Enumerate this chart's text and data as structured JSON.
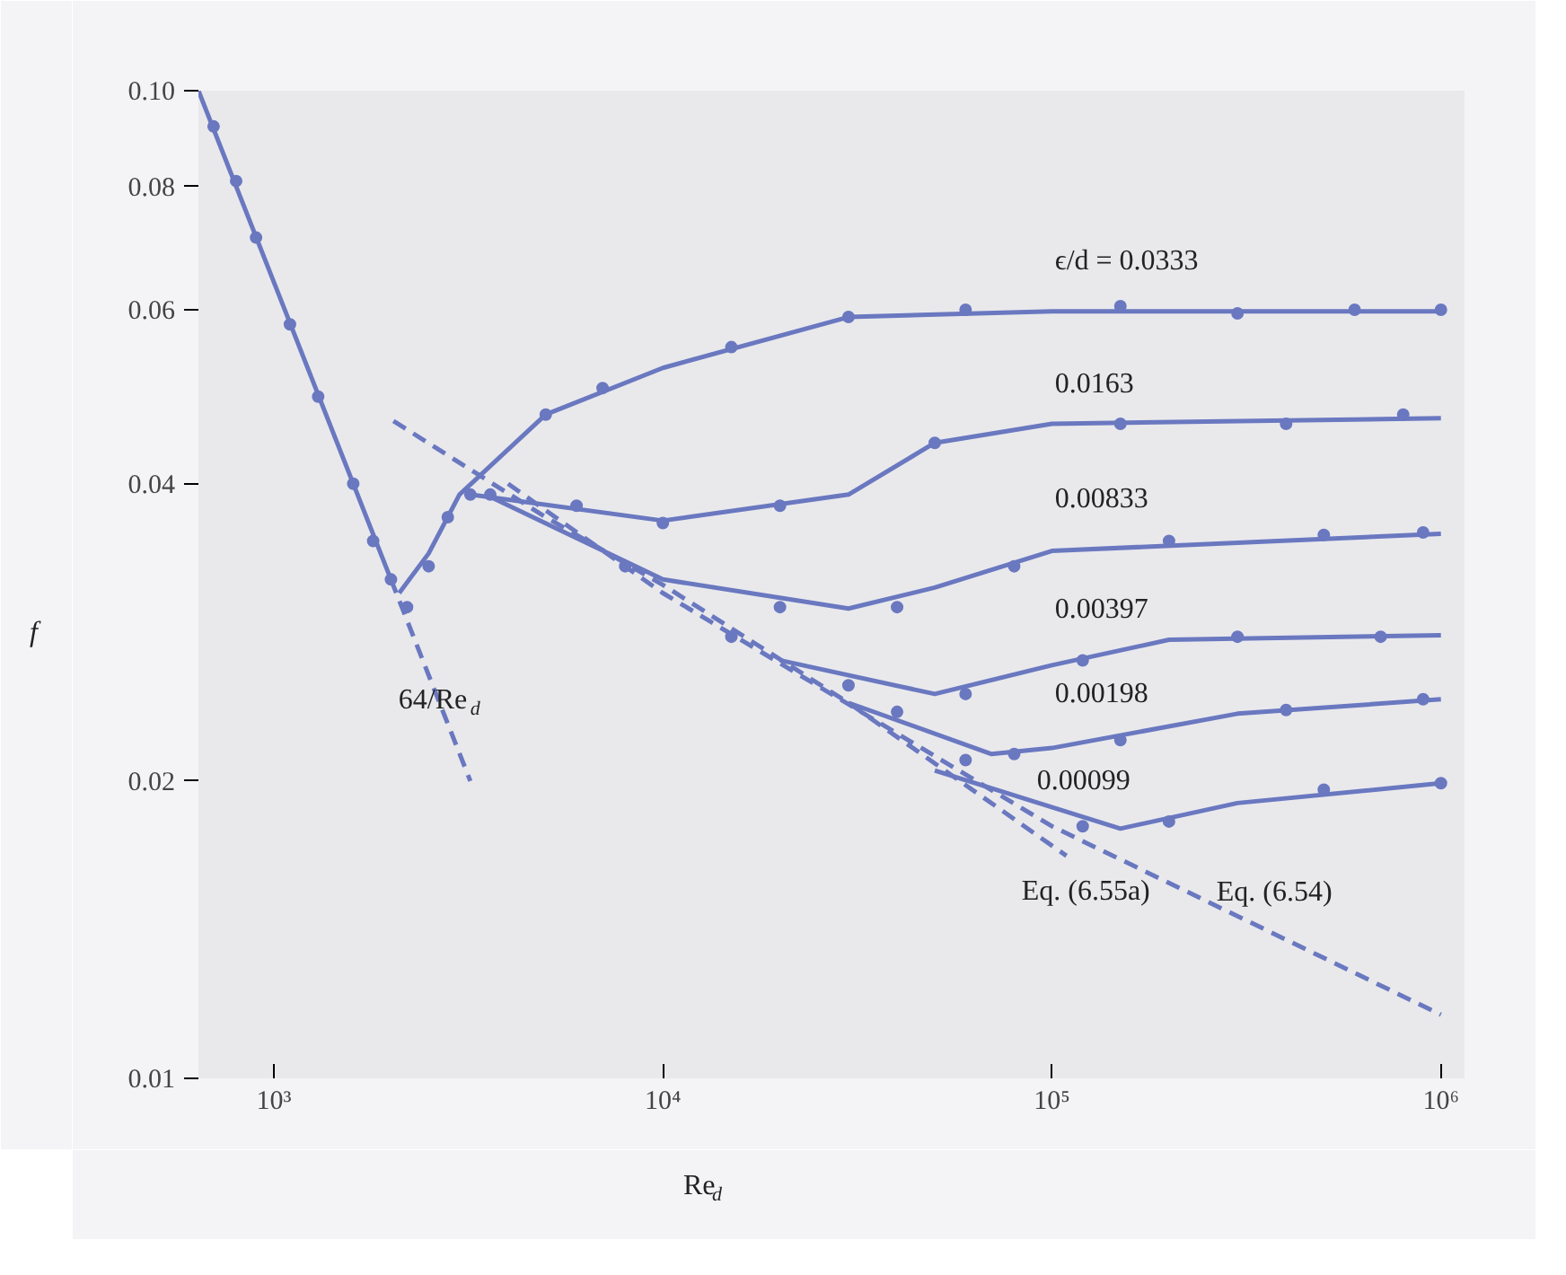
{
  "chart_data": {
    "type": "line",
    "xlabel": "Re$_{d}$",
    "ylabel": "f",
    "log": "xy",
    "grid": false,
    "xlim": [
      640,
      1150000
    ],
    "ylim": [
      0.01,
      0.1
    ],
    "xticks": [
      {
        "value": 1000,
        "label": "10³"
      },
      {
        "value": 10000,
        "label": "10⁴"
      },
      {
        "value": 100000,
        "label": "10⁵"
      },
      {
        "value": 1000000,
        "label": "10⁶"
      }
    ],
    "yticks": [
      0.01,
      0.02,
      0.04,
      0.06,
      0.08,
      {
        "value": 0.1,
        "label": "0.10"
      }
    ],
    "series": [
      {
        "color": "#6a78c0",
        "line_style": "solid",
        "x": [
          640,
          1000,
          2000
        ],
        "values": [
          0.1,
          0.064,
          0.032
        ]
      },
      {
        "name": "64/Re$_{d}$",
        "color": "#6a78c0",
        "line_style": "dashed",
        "x": [
          2000,
          3200
        ],
        "values": [
          0.032,
          0.02
        ]
      },
      {
        "name": "Eq. (6.55a)",
        "color": "#6a78c0",
        "line_style": "dashed",
        "x": [
          2030,
          5000,
          10000,
          30000,
          109000
        ],
        "values": [
          0.0463,
          0.037,
          0.0316,
          0.024,
          0.0168
        ]
      },
      {
        "name": "Eq. (6.54)",
        "color": "#6a78c0",
        "line_style": "dashed",
        "x": [
          4000,
          10000,
          100000,
          1000000
        ],
        "values": [
          0.04,
          0.031,
          0.018,
          0.0116
        ]
      },
      {
        "name": "ϵ/d = 0.0333",
        "color": "#6a78c0",
        "line_style": "solid",
        "x": [
          2100,
          2500,
          3000,
          5000,
          10000,
          30000,
          100000,
          1000000
        ],
        "values": [
          0.031,
          0.034,
          0.039,
          0.047,
          0.0524,
          0.059,
          0.0598,
          0.0598
        ]
      },
      {
        "name": "0.0163",
        "color": "#6a78c0",
        "line_style": "solid",
        "x": [
          3200,
          10000,
          30000,
          50000,
          100000,
          1000000
        ],
        "values": [
          0.039,
          0.0367,
          0.039,
          0.044,
          0.046,
          0.0466
        ]
      },
      {
        "name": "0.00833",
        "color": "#6a78c0",
        "line_style": "solid",
        "x": [
          3500,
          10000,
          30000,
          50000,
          100000,
          1000000
        ],
        "values": [
          0.039,
          0.032,
          0.0299,
          0.0314,
          0.0342,
          0.0356
        ]
      },
      {
        "name": "0.00397",
        "color": "#6a78c0",
        "line_style": "solid",
        "x": [
          20000,
          50000,
          100000,
          200000,
          1000000
        ],
        "values": [
          0.0265,
          0.0245,
          0.0262,
          0.0278,
          0.0281
        ]
      },
      {
        "name": "0.00198",
        "color": "#6a78c0",
        "line_style": "solid",
        "x": [
          30000,
          70000,
          100000,
          300000,
          1000000
        ],
        "values": [
          0.024,
          0.0213,
          0.0216,
          0.0234,
          0.0242
        ]
      },
      {
        "name": "0.00099",
        "color": "#6a78c0",
        "line_style": "solid",
        "x": [
          50000,
          150000,
          300000,
          1000000
        ],
        "values": [
          0.0205,
          0.0179,
          0.019,
          0.0199
        ]
      },
      {
        "type": "scatter",
        "marker": "circle",
        "color": "#6a78c0",
        "x": [
          700,
          800,
          900,
          1100,
          1300,
          1600,
          1800,
          2000,
          2200,
          2500,
          2800,
          3200,
          3600,
          5000,
          7000,
          15000,
          30000,
          60000,
          150000,
          300000,
          600000,
          1000000,
          6000,
          10000,
          20000,
          50000,
          150000,
          400000,
          800000,
          8000,
          20000,
          40000,
          80000,
          200000,
          500000,
          900000,
          15000,
          30000,
          60000,
          120000,
          300000,
          700000,
          40000,
          80000,
          150000,
          400000,
          900000,
          60000,
          120000,
          200000,
          500000,
          1000000
        ],
        "values": [
          0.092,
          0.081,
          0.071,
          0.058,
          0.049,
          0.04,
          0.035,
          0.032,
          0.03,
          0.033,
          0.037,
          0.039,
          0.039,
          0.047,
          0.05,
          0.055,
          0.059,
          0.06,
          0.0605,
          0.0595,
          0.06,
          0.06,
          0.038,
          0.0365,
          0.038,
          0.044,
          0.046,
          0.046,
          0.047,
          0.033,
          0.03,
          0.03,
          0.033,
          0.035,
          0.0355,
          0.0357,
          0.028,
          0.025,
          0.0245,
          0.0265,
          0.028,
          0.028,
          0.0235,
          0.0213,
          0.022,
          0.0236,
          0.0242,
          0.021,
          0.018,
          0.0182,
          0.0196,
          0.0199
        ]
      }
    ]
  }
}
